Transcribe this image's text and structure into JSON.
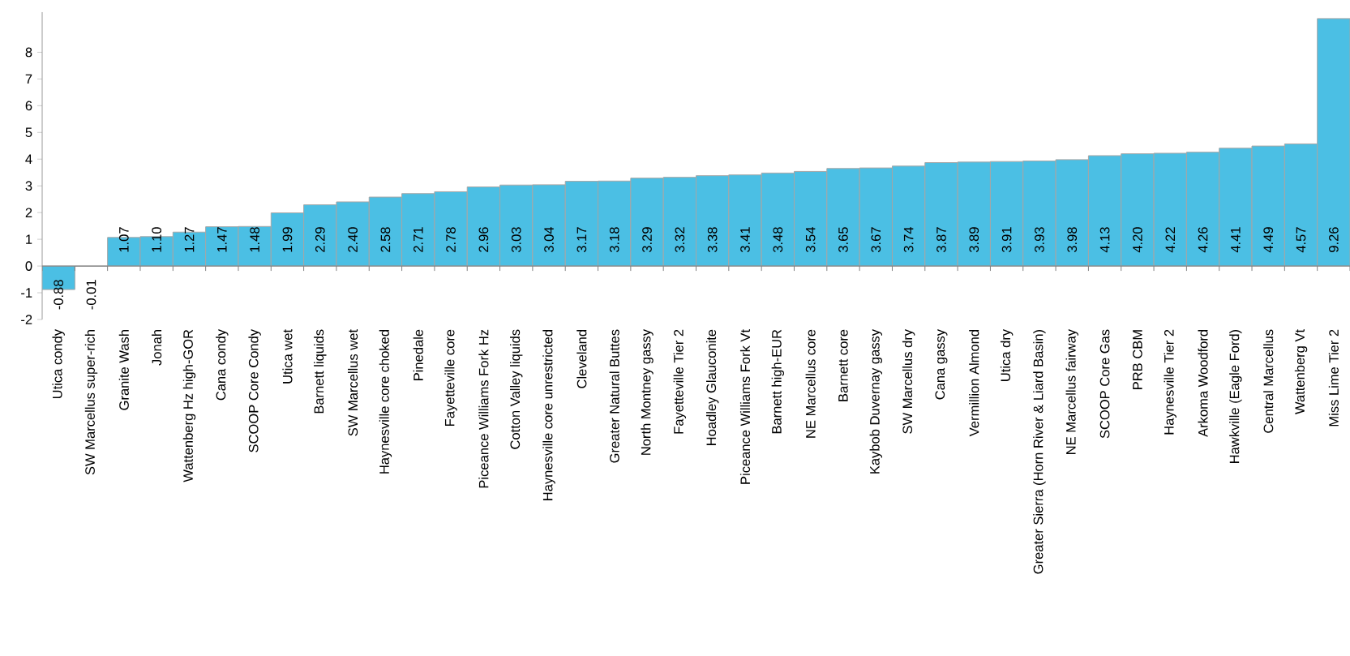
{
  "chart_data": {
    "type": "bar",
    "categories": [
      "Utica condy",
      "SW Marcellus super-rich",
      "Granite Wash",
      "Jonah",
      "Wattenberg Hz high-GOR",
      "Cana condy",
      "SCOOP Core Condy",
      "Utica wet",
      "Barnett liquids",
      "SW Marcellus wet",
      "Haynesville core choked",
      "Pinedale",
      "Fayetteville core",
      "Piceance Williams Fork Hz",
      "Cotton Valley liquids",
      "Haynesville core unrestricted",
      "Cleveland",
      "Greater Natural Buttes",
      "North Montney gassy",
      "Fayetteville Tier 2",
      "Hoadley Glauconite",
      "Piceance Williams Fork Vt",
      "Barnett high-EUR",
      "NE Marcellus core",
      "Barnett core",
      "Kaybob Duvernay gassy",
      "SW Marcellus dry",
      "Cana gassy",
      "Vermillion Almond",
      "Utica dry",
      "Greater Sierra (Horn River & Liard Basin)",
      "NE Marcellus fairway",
      "SCOOP Core Gas",
      "PRB CBM",
      "Haynesville Tier 2",
      "Arkoma Woodford",
      "Hawkville (Eagle Ford)",
      "Central Marcellus",
      "Wattenberg Vt",
      "Miss Lime Tier 2"
    ],
    "values": [
      -0.88,
      -0.01,
      1.07,
      1.1,
      1.27,
      1.47,
      1.48,
      1.99,
      2.29,
      2.4,
      2.58,
      2.71,
      2.78,
      2.96,
      3.03,
      3.04,
      3.17,
      3.18,
      3.29,
      3.32,
      3.38,
      3.41,
      3.48,
      3.54,
      3.65,
      3.67,
      3.74,
      3.87,
      3.89,
      3.91,
      3.93,
      3.98,
      4.13,
      4.2,
      4.22,
      4.26,
      4.41,
      4.49,
      4.57,
      9.26
    ],
    "value_labels": [
      "-0.88",
      "-0.01",
      "1.07",
      "1.10",
      "1.27",
      "1.47",
      "1.48",
      "1.99",
      "2.29",
      "2.40",
      "2.58",
      "2.71",
      "2.78",
      "2.96",
      "3.03",
      "3.04",
      "3.17",
      "3.18",
      "3.29",
      "3.32",
      "3.38",
      "3.41",
      "3.48",
      "3.54",
      "3.65",
      "3.67",
      "3.74",
      "3.87",
      "3.89",
      "3.91",
      "3.93",
      "3.98",
      "4.13",
      "4.20",
      "4.22",
      "4.26",
      "4.41",
      "4.49",
      "4.57",
      "9.26"
    ],
    "color": "#4bbfe4",
    "ylim": [
      -2,
      9.5
    ],
    "yticks": [
      -2,
      -1,
      0,
      1,
      2,
      3,
      4,
      5,
      6,
      7,
      8
    ]
  }
}
